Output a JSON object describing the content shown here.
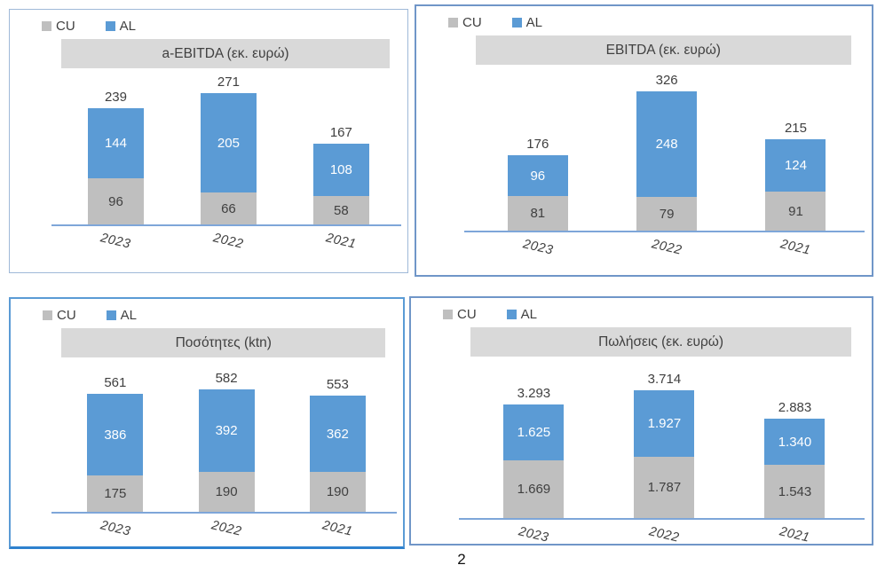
{
  "page": {
    "number": "2"
  },
  "colors": {
    "cu_series": "#BFBFBF",
    "al_series": "#5B9BD5",
    "title_banner_bg": "#D9D9D9",
    "axis_line": "#7EA6D9",
    "panel_border_blue": "#7096C8",
    "label_dark": "#404040",
    "label_light": "#FFFFFF"
  },
  "chart_data": [
    {
      "type": "bar",
      "stacked": true,
      "title": "a-EBITDA (εκ. ευρώ)",
      "categories": [
        "2023",
        "2022",
        "2021"
      ],
      "series": [
        {
          "name": "CU",
          "color": "#BFBFBF",
          "values": [
            96,
            66,
            58
          ],
          "labels": [
            "96",
            "66",
            "58"
          ]
        },
        {
          "name": "AL",
          "color": "#5B9BD5",
          "values": [
            144,
            205,
            108
          ],
          "labels": [
            "144",
            "205",
            "108"
          ]
        }
      ],
      "totals": [
        239,
        271,
        167
      ],
      "total_labels": [
        "239",
        "271",
        "167"
      ],
      "legend_position": "top-left",
      "gridlines": false,
      "y_axis_visible": false
    },
    {
      "type": "bar",
      "stacked": true,
      "title": "EBITDA (εκ. ευρώ)",
      "categories": [
        "2023",
        "2022",
        "2021"
      ],
      "series": [
        {
          "name": "CU",
          "color": "#BFBFBF",
          "values": [
            81,
            79,
            91
          ],
          "labels": [
            "81",
            "79",
            "91"
          ]
        },
        {
          "name": "AL",
          "color": "#5B9BD5",
          "values": [
            96,
            248,
            124
          ],
          "labels": [
            "96",
            "248",
            "124"
          ]
        }
      ],
      "totals": [
        176,
        326,
        215
      ],
      "total_labels": [
        "176",
        "326",
        "215"
      ],
      "legend_position": "top-left",
      "gridlines": false,
      "y_axis_visible": false
    },
    {
      "type": "bar",
      "stacked": true,
      "title": "Ποσότητες (ktn)",
      "categories": [
        "2023",
        "2022",
        "2021"
      ],
      "series": [
        {
          "name": "CU",
          "color": "#BFBFBF",
          "values": [
            175,
            190,
            190
          ],
          "labels": [
            "175",
            "190",
            "190"
          ]
        },
        {
          "name": "AL",
          "color": "#5B9BD5",
          "values": [
            386,
            392,
            362
          ],
          "labels": [
            "386",
            "392",
            "362"
          ]
        }
      ],
      "totals": [
        561,
        582,
        553
      ],
      "total_labels": [
        "561",
        "582",
        "553"
      ],
      "legend_position": "top-left",
      "gridlines": false,
      "y_axis_visible": false
    },
    {
      "type": "bar",
      "stacked": true,
      "title": "Πωλήσεις (εκ. ευρώ)",
      "categories": [
        "2023",
        "2022",
        "2021"
      ],
      "series": [
        {
          "name": "CU",
          "color": "#BFBFBF",
          "values": [
            1669,
            1787,
            1543
          ],
          "labels": [
            "1.669",
            "1.787",
            "1.543"
          ]
        },
        {
          "name": "AL",
          "color": "#5B9BD5",
          "values": [
            1625,
            1927,
            1340
          ],
          "labels": [
            "1.625",
            "1.927",
            "1.340"
          ]
        }
      ],
      "totals": [
        3293,
        3714,
        2883
      ],
      "total_labels": [
        "3.293",
        "3.714",
        "2.883"
      ],
      "legend_position": "top-left",
      "gridlines": false,
      "y_axis_visible": false
    }
  ]
}
